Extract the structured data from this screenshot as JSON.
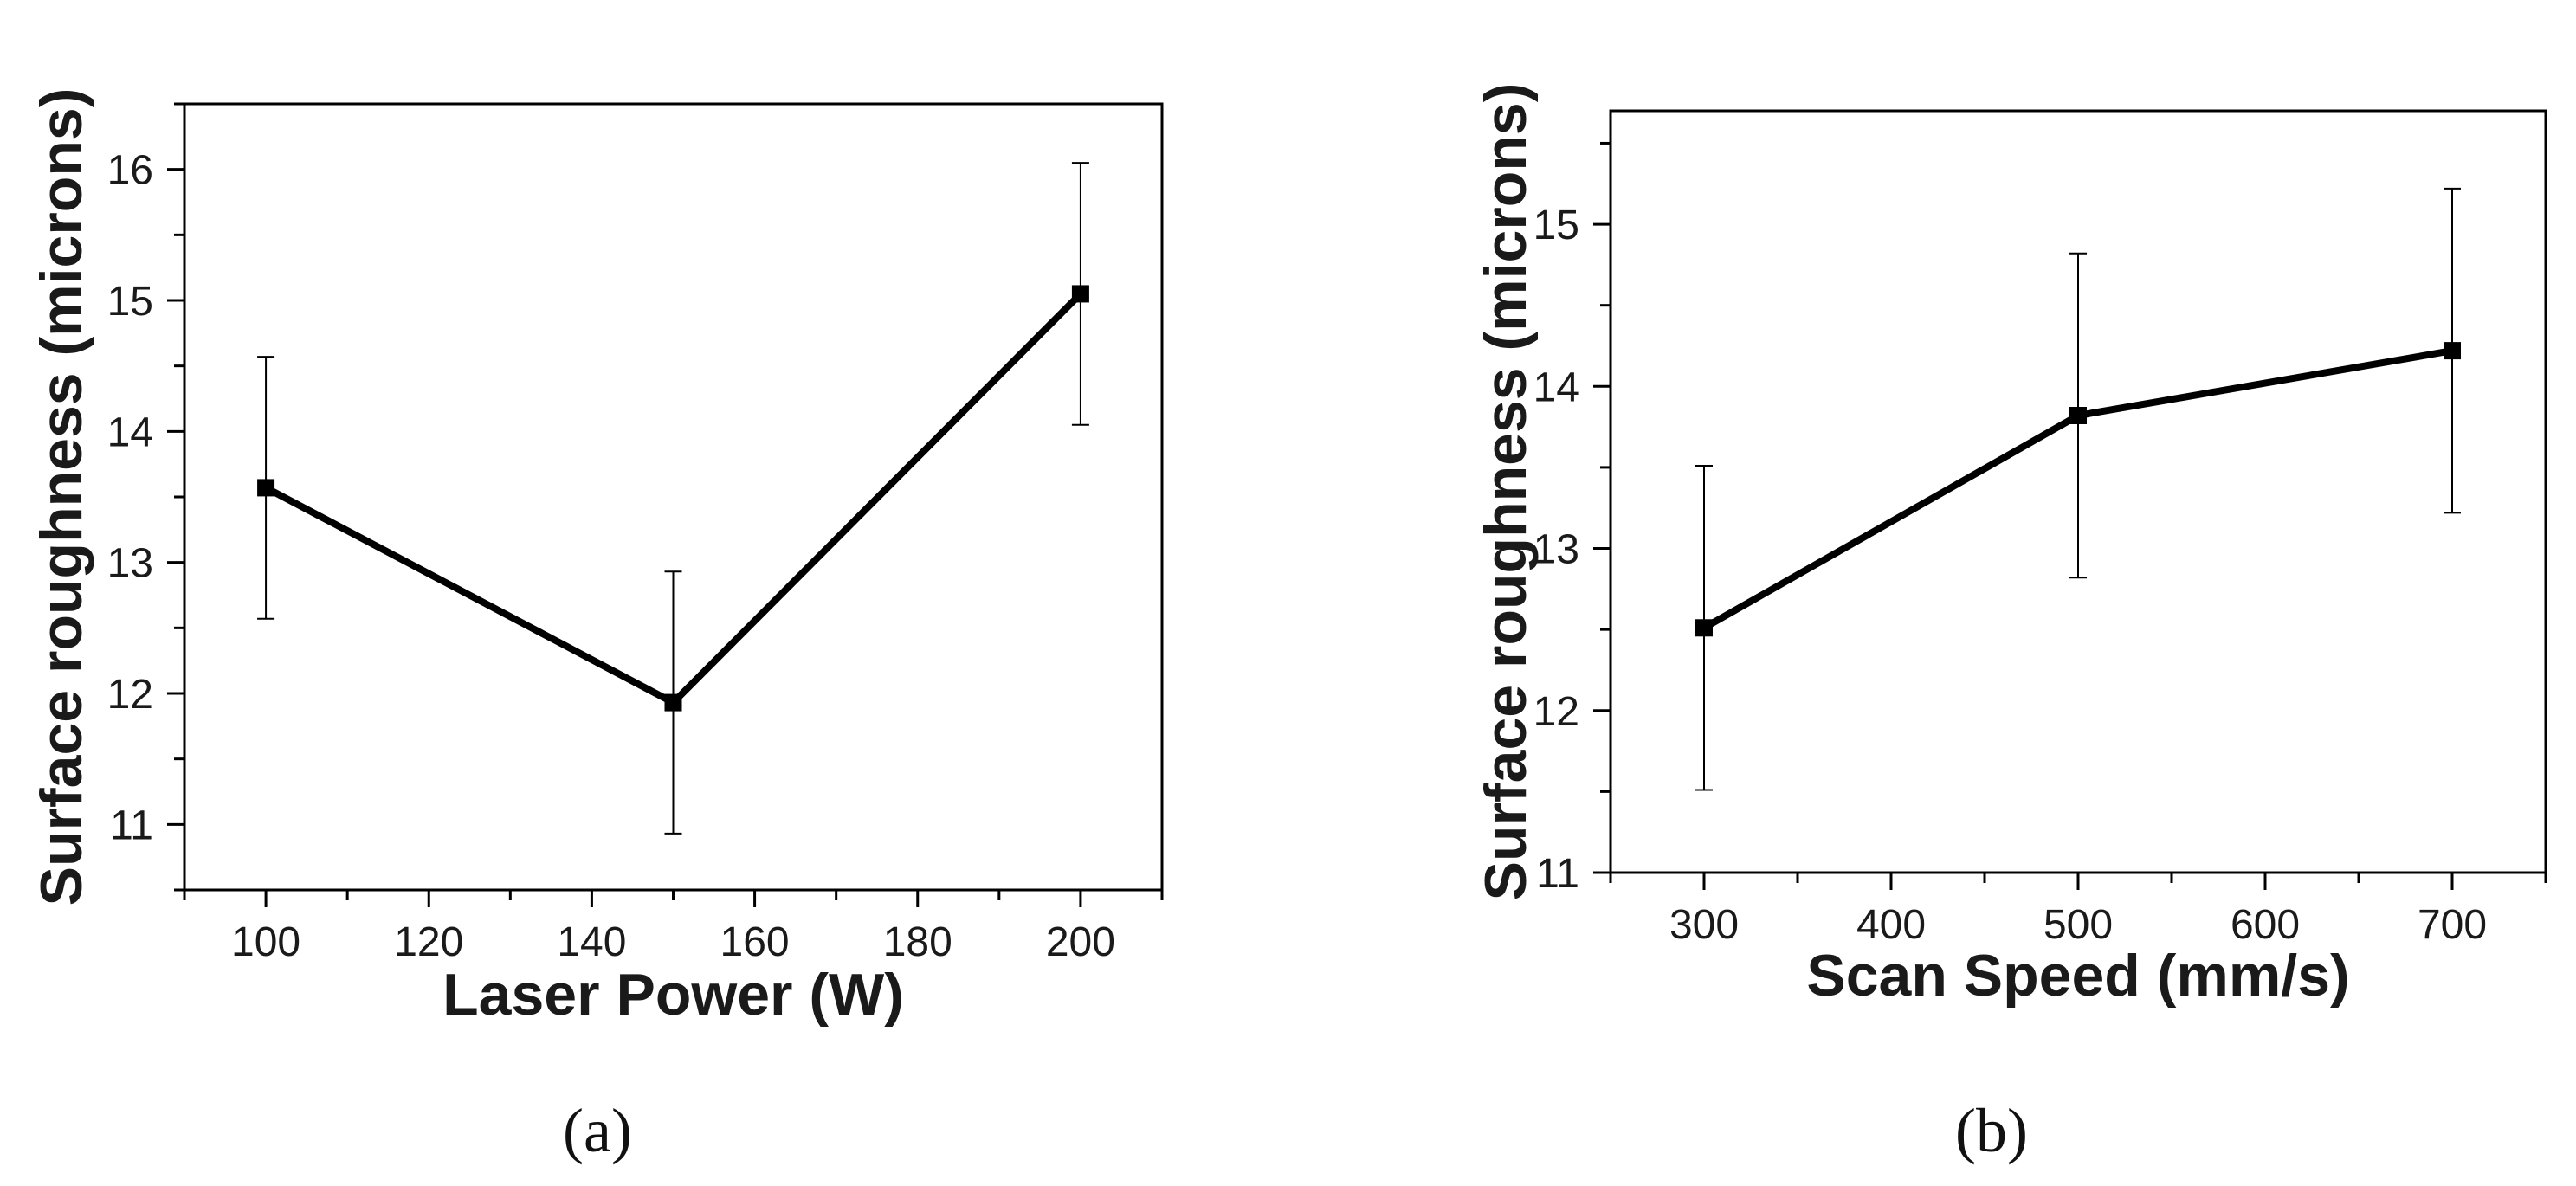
{
  "colors": {
    "line": "#000000",
    "axis": "#000000",
    "text": "#1a1a1a",
    "background": "#ffffff"
  },
  "chart_data": [
    {
      "type": "line",
      "panel_label": "(a)",
      "xlabel": "Laser Power (W)",
      "ylabel": "Surface roughness (microns)",
      "xlim": [
        90,
        210
      ],
      "ylim": [
        10.5,
        16.5
      ],
      "xticks": [
        100,
        120,
        140,
        160,
        180,
        200
      ],
      "yticks": [
        11,
        12,
        13,
        14,
        15,
        16
      ],
      "grid": false,
      "marker": "square",
      "series": [
        {
          "name": "Surface roughness",
          "x": [
            100,
            150,
            200
          ],
          "values": [
            13.57,
            11.93,
            15.05
          ],
          "error": [
            1.0,
            1.0,
            1.0
          ]
        }
      ]
    },
    {
      "type": "line",
      "panel_label": "(b)",
      "xlabel": "Scan Speed (mm/s)",
      "ylabel": "Surface roughness (microns)",
      "xlim": [
        250,
        750
      ],
      "ylim": [
        11,
        15.7
      ],
      "xticks": [
        300,
        400,
        500,
        600,
        700
      ],
      "yticks": [
        11,
        12,
        13,
        14,
        15
      ],
      "grid": false,
      "marker": "square",
      "series": [
        {
          "name": "Surface roughness",
          "x": [
            300,
            500,
            700
          ],
          "values": [
            12.51,
            13.82,
            14.22
          ],
          "error": [
            1.0,
            1.0,
            1.0
          ]
        }
      ]
    }
  ]
}
